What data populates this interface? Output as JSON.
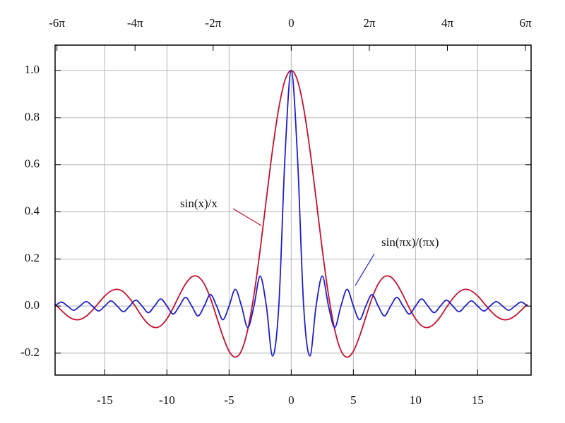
{
  "chart_data": {
    "type": "line",
    "x": [
      -19,
      -18.5,
      -18,
      -17.5,
      -17,
      -16.5,
      -16,
      -15.5,
      -15,
      -14.5,
      -14,
      -13.5,
      -13,
      -12.5,
      -12,
      -11.5,
      -11,
      -10.5,
      -10,
      -9.5,
      -9,
      -8.5,
      -8,
      -7.5,
      -7,
      -6.5,
      -6,
      -5.5,
      -5,
      -4.5,
      -4,
      -3.5,
      -3,
      -2.5,
      -2,
      -1.5,
      -1,
      -0.5,
      0,
      0.5,
      1,
      1.5,
      2,
      2.5,
      3,
      3.5,
      4,
      4.5,
      5,
      5.5,
      6,
      6.5,
      7,
      7.5,
      8,
      8.5,
      9,
      9.5,
      10,
      10.5,
      11,
      11.5,
      12,
      12.5,
      13,
      13.5,
      14,
      14.5,
      15,
      15.5,
      16,
      16.5,
      17,
      17.5,
      18,
      18.5,
      19
    ],
    "series": [
      {
        "name": "sin(x)/x",
        "color": "#c8102e",
        "values": [
          0.008,
          -0.018,
          -0.042,
          -0.056,
          -0.057,
          -0.043,
          -0.018,
          0.013,
          0.043,
          0.064,
          0.071,
          0.06,
          0.032,
          -0.005,
          -0.045,
          -0.076,
          -0.091,
          -0.084,
          -0.054,
          -0.008,
          0.046,
          0.094,
          0.124,
          0.125,
          0.094,
          0.033,
          -0.047,
          -0.128,
          -0.192,
          -0.217,
          -0.189,
          -0.1,
          0.047,
          0.239,
          0.455,
          0.665,
          0.841,
          0.959,
          1,
          0.959,
          0.841,
          0.665,
          0.455,
          0.239,
          0.047,
          -0.1,
          -0.189,
          -0.217,
          -0.192,
          -0.128,
          -0.047,
          0.033,
          0.094,
          0.125,
          0.124,
          0.094,
          0.046,
          -0.008,
          -0.054,
          -0.084,
          -0.091,
          -0.076,
          -0.045,
          -0.005,
          0.032,
          0.06,
          0.071,
          0.064,
          0.043,
          0.013,
          -0.018,
          -0.043,
          -0.057,
          -0.056,
          -0.042,
          -0.018,
          0.008
        ]
      },
      {
        "name": "sin(πx)/(πx)",
        "color": "#1f1fd0",
        "values": [
          0,
          0.017,
          0,
          -0.018,
          0,
          0.019,
          0,
          -0.021,
          0,
          0.022,
          0,
          -0.024,
          0,
          0.025,
          0,
          -0.028,
          0,
          0.03,
          0,
          -0.034,
          0,
          0.037,
          0,
          -0.042,
          0,
          0.049,
          0,
          -0.058,
          0,
          0.071,
          0,
          -0.091,
          0,
          0.127,
          0,
          -0.212,
          0,
          0.637,
          1,
          0.637,
          0,
          -0.212,
          0,
          0.127,
          0,
          -0.091,
          0,
          0.071,
          0,
          -0.058,
          0,
          0.049,
          0,
          -0.042,
          0,
          0.037,
          0,
          -0.034,
          0,
          0.03,
          0,
          -0.028,
          0,
          0.025,
          0,
          -0.024,
          0,
          0.022,
          0,
          -0.021,
          0,
          0.019,
          0,
          -0.018,
          0,
          0.017,
          0
        ]
      }
    ],
    "xlim": [
      -19,
      19.3
    ],
    "ylim": [
      -0.293,
      1.108
    ],
    "xticks": [
      -15,
      -10,
      -5,
      0,
      5,
      10,
      15
    ],
    "x2ticks": [
      {
        "value": -18.85,
        "label": "-6π"
      },
      {
        "value": -12.566,
        "label": "-4π"
      },
      {
        "value": -6.283,
        "label": "-2π"
      },
      0,
      {
        "value": 6.283,
        "label": "2π"
      },
      {
        "value": 12.566,
        "label": "4π"
      },
      {
        "value": 18.85,
        "label": "6π"
      }
    ],
    "yticks": [
      -0.2,
      {
        "value": 0,
        "label": "0.0"
      },
      0.2,
      0.4,
      0.6,
      0.8,
      {
        "value": 1,
        "label": "1.0"
      }
    ],
    "grid": true
  }
}
